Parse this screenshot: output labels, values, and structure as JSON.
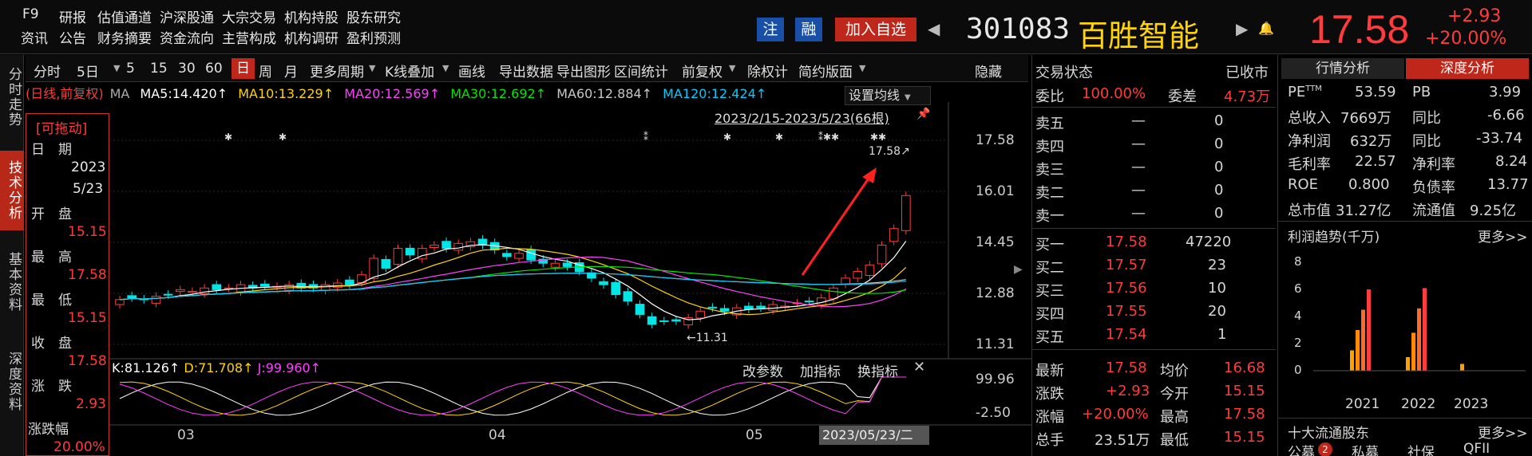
{
  "topbar": {
    "row1": [
      "F9",
      "研报",
      "估值通道",
      "沪深股通",
      "大宗交易",
      "机构持股",
      "股东研究"
    ],
    "row2": [
      "资讯",
      "公告",
      "财务摘要",
      "资金流向",
      "主营构成",
      "机构调研",
      "盈利预测"
    ],
    "btn_zhu": "注",
    "btn_rong": "融",
    "btn_add": "加入自选",
    "prev_arrow": "◀",
    "next_arrow": "▶",
    "bell": "🔔",
    "code": "301083",
    "name": "百胜智能",
    "price": "17.58",
    "change": "+2.93",
    "change_pct": "+20.00%"
  },
  "lefttabs": [
    "分时走势",
    "技术分析",
    "基本资料",
    "深度资料"
  ],
  "toolbar": {
    "items": [
      "分时",
      "5日",
      "5",
      "15",
      "30",
      "60",
      "日",
      "周",
      "月",
      "更多周期",
      "K线叠加",
      "画线",
      "导出数据",
      "导出图形",
      "区间统计",
      "前复权",
      "除权计",
      "简约版面",
      "隐藏"
    ],
    "active": "日"
  },
  "ma_line": {
    "mode": "(日线,前复权)",
    "ma": "MA",
    "ma5": "MA5:14.420↑",
    "ma10": "MA10:13.229↑",
    "ma20": "MA20:12.569↑",
    "ma30": "MA30:12.692↑",
    "ma60": "MA60:12.884↑",
    "ma120": "MA120:12.424↑"
  },
  "chart": {
    "set_ma": "设置均线",
    "range_label": "2023/2/15-2023/5/23(66根)",
    "y_ticks": [
      "17.58",
      "16.01",
      "14.45",
      "12.88",
      "11.31"
    ],
    "high_label": "17.58↗",
    "low_label": "←11.31",
    "x_ticks": [
      "03",
      "04",
      "05"
    ],
    "date_tag": "2023/05/23/二",
    "kdj": {
      "k": "K:81.126↑",
      "d": "D:71.708↑",
      "j": "J:99.960↑",
      "btn_param": "改参数",
      "btn_add": "加指标",
      "btn_switch": "换指标",
      "close": "✕",
      "y_ticks": [
        "99.96",
        "-2.50"
      ]
    }
  },
  "infopanel": {
    "drag": "[可拖动]",
    "date_label": "日　期",
    "year": "2023",
    "md": "5/23",
    "open_label": "开　盘",
    "open": "15.15",
    "high_label": "最　高",
    "high": "17.58",
    "low_label": "最　低",
    "low": "15.15",
    "close_label": "收　盘",
    "close": "17.58",
    "chg_label": "涨　跌",
    "chg": "2.93",
    "chgpct_label": "涨跌幅",
    "chgpct": "20.00%"
  },
  "midpanel": {
    "status_label": "交易状态",
    "status_value": "已收市",
    "weibi_label": "委比",
    "weibi": "100.00%",
    "weicha_label": "委差",
    "weicha": "4.73万",
    "sells": [
      {
        "label": "卖五",
        "price": "—",
        "vol": "0"
      },
      {
        "label": "卖四",
        "price": "—",
        "vol": "0"
      },
      {
        "label": "卖三",
        "price": "—",
        "vol": "0"
      },
      {
        "label": "卖二",
        "price": "—",
        "vol": "0"
      },
      {
        "label": "卖一",
        "price": "—",
        "vol": "0"
      }
    ],
    "buys": [
      {
        "label": "买一",
        "price": "17.58",
        "vol": "47220"
      },
      {
        "label": "买二",
        "price": "17.57",
        "vol": "23"
      },
      {
        "label": "买三",
        "price": "17.56",
        "vol": "10"
      },
      {
        "label": "买四",
        "price": "17.55",
        "vol": "20"
      },
      {
        "label": "买五",
        "price": "17.54",
        "vol": "1"
      }
    ],
    "stats": [
      {
        "l1": "最新",
        "v1": "17.58",
        "l2": "均价",
        "v2": "16.68"
      },
      {
        "l1": "涨跌",
        "v1": "+2.93",
        "l2": "今开",
        "v2": "15.15"
      },
      {
        "l1": "涨幅",
        "v1": "+20.00%",
        "l2": "最高",
        "v2": "17.58"
      },
      {
        "l1": "总手",
        "v1": "23.51万",
        "l2": "最低",
        "v2": "15.15"
      }
    ]
  },
  "rightpanel": {
    "tab1": "行情分析",
    "tab2": "深度分析",
    "rows": [
      {
        "l1": "PE",
        "sup": "TTM",
        "v1": "53.59",
        "l2": "PB",
        "v2": "3.99"
      },
      {
        "l1": "总收入",
        "v1": "7669万",
        "l2": "同比",
        "v2": "-6.66"
      },
      {
        "l1": "净利润",
        "v1": "632万",
        "l2": "同比",
        "v2": "-33.74"
      },
      {
        "l1": "毛利率",
        "v1": "22.57",
        "l2": "净利率",
        "v2": "8.24"
      },
      {
        "l1": "ROE",
        "v1": "0.800",
        "l2": "负债率",
        "v2": "13.77"
      },
      {
        "l1": "总市值",
        "v1": "31.27亿",
        "l2": "流通值",
        "v2": "9.25亿"
      }
    ],
    "profit_title": "利润趋势(千万)",
    "more": "更多>>",
    "profit_y": [
      "8",
      "6",
      "4",
      "2",
      "0"
    ],
    "profit_years": [
      "2021",
      "2022",
      "2023"
    ],
    "holders_title": "十大流通股东",
    "holders_more": "更多>>",
    "holder_tabs": [
      "公募",
      "私募",
      "社保",
      "QFII"
    ],
    "holder_badge": "2"
  },
  "colors": {
    "up": "#ff3b3b",
    "down": "#00e6e6",
    "accent": "#c0271b",
    "ma5": "#ffffff",
    "ma10": "#ffd400",
    "ma20": "#ff40ff",
    "ma30": "#00e600",
    "ma60": "#c8c8c8",
    "ma120": "#00ccff"
  }
}
